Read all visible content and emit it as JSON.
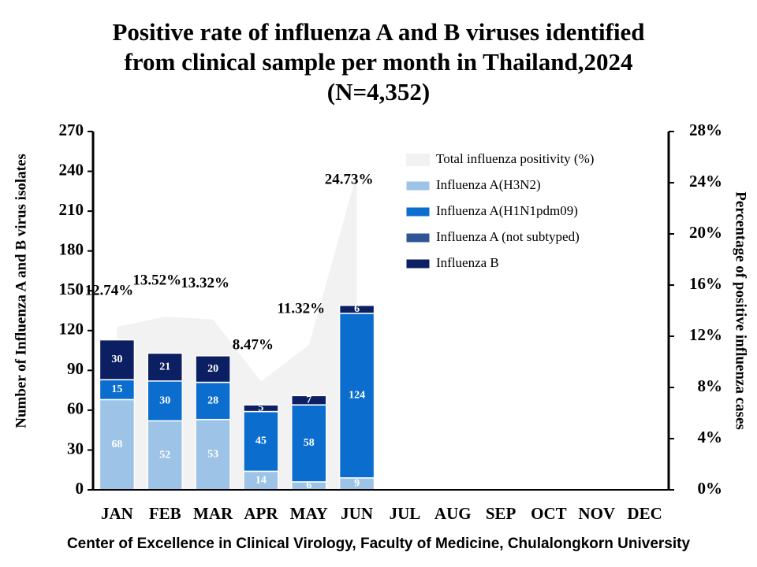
{
  "chart_data": {
    "type": "stacked-bar-area",
    "title": "Positive rate of influenza A and B viruses identified from clinical sample per month in Thailand,2024 (N=4,352)",
    "footer": "Center of Excellence in Clinical Virology, Faculty of Medicine, Chulalongkorn University",
    "y_label": "Number of Influenza A and B virus isolates",
    "y2_label": "Percentage of positive influenza cases",
    "categories": [
      "JAN",
      "FEB",
      "MAR",
      "APR",
      "MAY",
      "JUN",
      "JUL",
      "AUG",
      "SEP",
      "OCT",
      "NOV",
      "DEC"
    ],
    "ylim": [
      0,
      270
    ],
    "yticks": [
      0,
      30,
      60,
      90,
      120,
      150,
      180,
      210,
      240,
      270
    ],
    "y2lim": [
      0,
      28
    ],
    "y2ticks": [
      {
        "value": 0,
        "label": "0%"
      },
      {
        "value": 4,
        "label": "4%"
      },
      {
        "value": 8,
        "label": "8%"
      },
      {
        "value": 12,
        "label": "12%"
      },
      {
        "value": 16,
        "label": "16%"
      },
      {
        "value": 20,
        "label": "20%"
      },
      {
        "value": 24,
        "label": "24%"
      },
      {
        "value": 28,
        "label": "28%"
      }
    ],
    "series": [
      {
        "name": "Total influenza positivity (%)",
        "type": "area",
        "axis": "y2",
        "color": "#f2f2f2",
        "values": [
          12.74,
          13.52,
          13.32,
          8.47,
          11.32,
          24.73,
          null,
          null,
          null,
          null,
          null,
          null
        ],
        "value_labels": [
          "12.74%",
          "13.52%",
          "13.32%",
          "8.47%",
          "11.32%",
          "24.73%",
          null,
          null,
          null,
          null,
          null,
          null
        ]
      },
      {
        "name": "Influenza A(H3N2)",
        "type": "bar",
        "color": "#9dc3e6",
        "values": [
          68,
          52,
          53,
          14,
          6,
          9,
          null,
          null,
          null,
          null,
          null,
          null
        ]
      },
      {
        "name": "Influenza A(H1N1pdm09)",
        "type": "bar",
        "color": "#0b6ecf",
        "values": [
          15,
          30,
          28,
          45,
          58,
          124,
          null,
          null,
          null,
          null,
          null,
          null
        ]
      },
      {
        "name": "Influenza A (not subtyped)",
        "type": "bar",
        "color": "#2f5597",
        "values": [
          null,
          null,
          null,
          null,
          null,
          null,
          null,
          null,
          null,
          null,
          null,
          null
        ]
      },
      {
        "name": "Influenza B",
        "type": "bar",
        "color": "#0c1f63",
        "values": [
          30,
          21,
          20,
          5,
          7,
          6,
          null,
          null,
          null,
          null,
          null,
          null
        ]
      }
    ]
  }
}
